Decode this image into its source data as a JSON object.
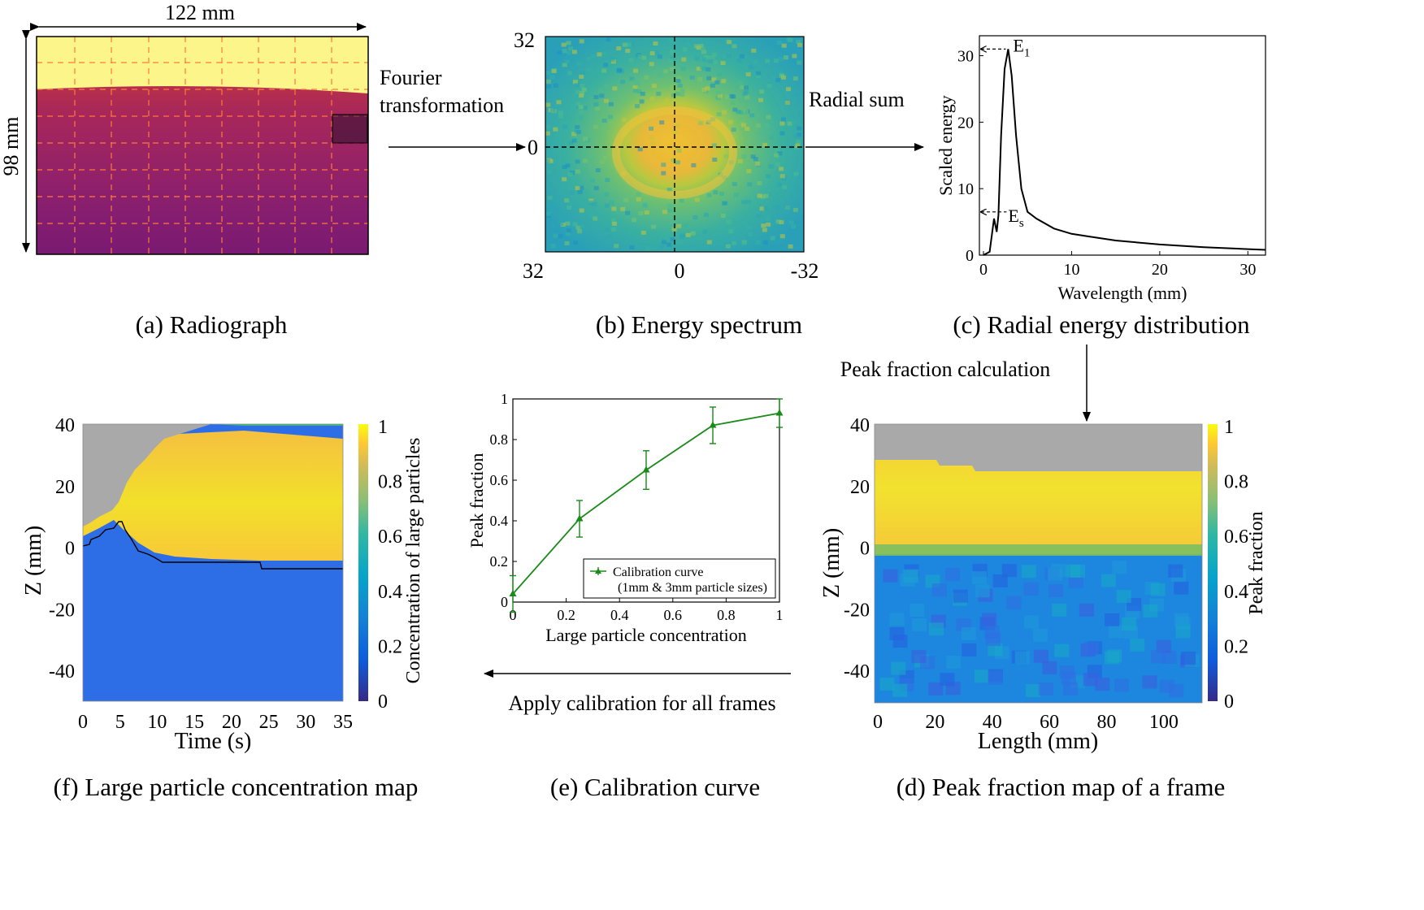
{
  "panels": {
    "a": {
      "caption": "(a) Radiograph",
      "width_label": "122 mm",
      "height_label": "98 mm"
    },
    "b": {
      "caption": "(b) Energy spectrum",
      "tick_top": "32",
      "tick_mid": "0",
      "tick_bl": "32",
      "tick_bm": "0",
      "tick_br": "-32"
    },
    "c": {
      "caption": "(c) Radial energy distribution",
      "xlabel": "Wavelength (mm)",
      "ylabel": "Scaled energy",
      "xticks": [
        "0",
        "10",
        "20",
        "30"
      ],
      "yticks": [
        "0",
        "10",
        "20",
        "30"
      ],
      "e1_label": "E",
      "e1_sub": "1",
      "es_label": "E",
      "es_sub": "s"
    },
    "d": {
      "caption": "(d) Peak fraction map of a frame",
      "xlabel": "Length (mm)",
      "ylabel": "Z (mm)",
      "xticks": [
        "0",
        "20",
        "40",
        "60",
        "80",
        "100"
      ],
      "yticks": [
        "40",
        "20",
        "0",
        "-20",
        "-40"
      ],
      "cbar_label": "Peak fraction",
      "cbar_ticks": [
        "1",
        "0.8",
        "0.6",
        "0.4",
        "0.2",
        "0"
      ]
    },
    "e": {
      "caption": "(e) Calibration curve",
      "xlabel": "Large particle concentration",
      "ylabel": "Peak fraction",
      "xticks": [
        "0",
        "0.2",
        "0.4",
        "0.6",
        "0.8",
        "1"
      ],
      "yticks": [
        "0",
        "0.2",
        "0.4",
        "0.6",
        "0.8",
        "1"
      ],
      "legend_line1": "Calibration curve",
      "legend_line2": "(1mm & 3mm particle sizes)"
    },
    "f": {
      "caption": "(f) Large particle concentration map",
      "xlabel": "Time (s)",
      "ylabel": "Z (mm)",
      "xticks": [
        "0",
        "5",
        "10",
        "15",
        "20",
        "25",
        "30",
        "35"
      ],
      "yticks": [
        "40",
        "20",
        "0",
        "-20",
        "-40"
      ],
      "cbar_label": "Concentration of large particles",
      "cbar_ticks": [
        "1",
        "0.8",
        "0.6",
        "0.4",
        "0.2",
        "0"
      ]
    }
  },
  "arrows": {
    "fourier_line1": "Fourier",
    "fourier_line2": "transformation",
    "radial_sum": "Radial sum",
    "peak_fraction": "Peak fraction calculation",
    "apply_calibration": "Apply calibration for all frames"
  },
  "colors": {
    "curve_green": "#1a8a1a",
    "gray_region": "#a9a9a9"
  },
  "chart_data": [
    {
      "type": "line",
      "title": "",
      "xlabel": "Wavelength (mm)",
      "ylabel": "Scaled energy",
      "xlim": [
        0,
        32
      ],
      "ylim": [
        0,
        33
      ],
      "series": [
        {
          "name": "Radial energy distribution",
          "x": [
            0,
            0.7,
            1.2,
            1.5,
            1.7,
            2.0,
            2.4,
            2.8,
            3.2,
            3.7,
            4.3,
            5.0,
            6.0,
            8.0,
            10,
            12,
            15,
            20,
            25,
            30,
            32
          ],
          "y": [
            0,
            0.5,
            5.5,
            3.5,
            6.0,
            18.0,
            28.0,
            31.0,
            27.0,
            18.0,
            10.0,
            6.5,
            5.5,
            4.0,
            3.2,
            2.8,
            2.2,
            1.6,
            1.2,
            0.9,
            0.8
          ]
        }
      ],
      "annotations": [
        {
          "text": "E1",
          "x": 2.8,
          "y": 31.0
        },
        {
          "text": "Es",
          "x": 1.7,
          "y": 6.5
        }
      ]
    },
    {
      "type": "line",
      "title": "",
      "xlabel": "Large particle concentration",
      "ylabel": "Peak fraction",
      "xlim": [
        0,
        1
      ],
      "ylim": [
        0,
        1
      ],
      "legend": "bottom-right",
      "series": [
        {
          "name": "Calibration curve (1mm & 3mm particle sizes)",
          "x": [
            0,
            0.25,
            0.5,
            0.75,
            1.0
          ],
          "y": [
            0.04,
            0.41,
            0.65,
            0.87,
            0.93
          ],
          "err": [
            0.09,
            0.09,
            0.095,
            0.09,
            0.07
          ]
        }
      ]
    }
  ]
}
